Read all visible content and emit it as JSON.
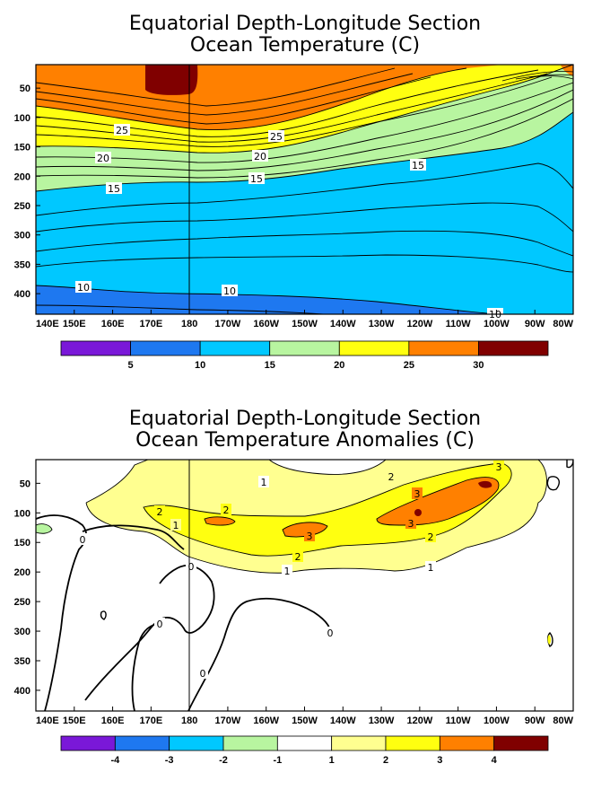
{
  "chart_data": [
    {
      "type": "heatmap",
      "title": "Equatorial Depth-Longitude Section",
      "subtitle": "Ocean Temperature (C)",
      "x_ticks": [
        "140E",
        "150E",
        "160E",
        "170E",
        "180",
        "170W",
        "160W",
        "150W",
        "140W",
        "130W",
        "120W",
        "110W",
        "100W",
        "90W",
        "80W"
      ],
      "y_ticks": [
        "50",
        "100",
        "150",
        "200",
        "250",
        "300",
        "350",
        "400"
      ],
      "y_values": [
        50,
        100,
        150,
        200,
        250,
        300,
        350,
        400
      ],
      "ylim": [
        435,
        10
      ],
      "colorbar": {
        "ticks": [
          "5",
          "10",
          "15",
          "20",
          "25",
          "30"
        ],
        "colors": [
          "#7a18d8",
          "#1e78f0",
          "#00c8ff",
          "#b8f5a0",
          "#ffff10",
          "#ff8000",
          "#800000"
        ]
      },
      "contour_labels": [
        "25",
        "25",
        "20",
        "20",
        "15",
        "15",
        "15",
        "10",
        "10",
        "10"
      ],
      "isotherm_depths": [
        {
          "isotherm": 25,
          "depth_by_lon": [
            [
              140,
              112
            ],
            [
              180,
              130
            ],
            [
              200,
              140
            ],
            [
              240,
              105
            ],
            [
              280,
              50
            ]
          ]
        },
        {
          "isotherm": 20,
          "depth_by_lon": [
            [
              140,
              158
            ],
            [
              180,
              170
            ],
            [
              200,
              178
            ],
            [
              240,
              130
            ],
            [
              280,
              60
            ]
          ]
        },
        {
          "isotherm": 15,
          "depth_by_lon": [
            [
              140,
              200
            ],
            [
              180,
              210
            ],
            [
              200,
              205
            ],
            [
              240,
              180
            ],
            [
              280,
              100
            ]
          ]
        },
        {
          "isotherm": 10,
          "depth_by_lon": [
            [
              140,
              355
            ],
            [
              180,
              380
            ],
            [
              220,
              400
            ],
            [
              260,
              420
            ]
          ]
        }
      ]
    },
    {
      "type": "heatmap",
      "title": "Equatorial Depth-Longitude Section",
      "subtitle": "Ocean Temperature Anomalies (C)",
      "x_ticks": [
        "140E",
        "150E",
        "160E",
        "170E",
        "180",
        "170W",
        "160W",
        "150W",
        "140W",
        "130W",
        "120W",
        "110W",
        "100W",
        "90W",
        "80W"
      ],
      "y_ticks": [
        "50",
        "100",
        "150",
        "200",
        "250",
        "300",
        "350",
        "400"
      ],
      "y_values": [
        50,
        100,
        150,
        200,
        250,
        300,
        350,
        400
      ],
      "ylim": [
        435,
        10
      ],
      "colorbar": {
        "ticks": [
          "-4",
          "-3",
          "-2",
          "-1",
          "1",
          "2",
          "3",
          "4"
        ],
        "colors": [
          "#7a18d8",
          "#1e78f0",
          "#00c8ff",
          "#b8f5a0",
          "#ffffff",
          "#ffff90",
          "#ffff10",
          "#ff8000",
          "#800000"
        ]
      },
      "contour_labels": [
        "1",
        "1",
        "1",
        "1",
        "2",
        "2",
        "2",
        "2",
        "2",
        "3",
        "3",
        "3",
        "0",
        "0",
        "0",
        "0"
      ],
      "max_anomaly": {
        "value": 4,
        "depth": 50,
        "lon": "100W"
      }
    }
  ]
}
